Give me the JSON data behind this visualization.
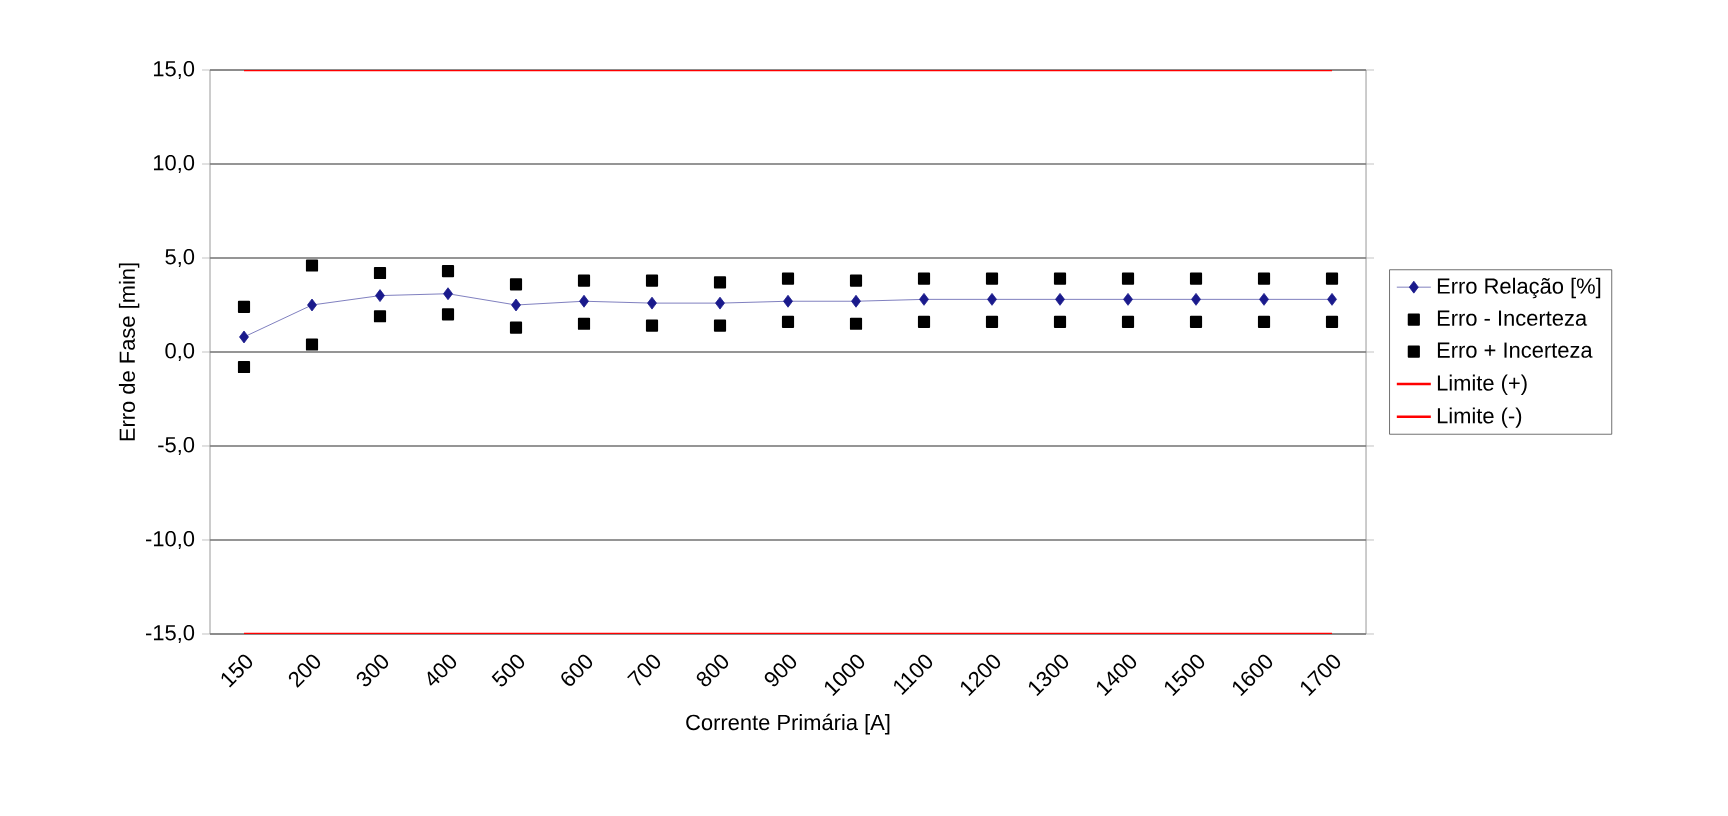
{
  "chart_data": {
    "type": "line",
    "xlabel": "Corrente Primária [A]",
    "ylabel": "Erro de Fase [min]",
    "categories": [
      "150",
      "200",
      "300",
      "400",
      "500",
      "600",
      "700",
      "800",
      "900",
      "1000",
      "1100",
      "1200",
      "1300",
      "1400",
      "1500",
      "1600",
      "1700"
    ],
    "series": [
      {
        "name": "Erro Relação [%]",
        "marker": "diamond",
        "color": "#1a1a8c",
        "values": [
          0.8,
          2.5,
          3.0,
          3.1,
          2.5,
          2.7,
          2.6,
          2.6,
          2.7,
          2.7,
          2.8,
          2.8,
          2.8,
          2.8,
          2.8,
          2.8,
          2.8
        ]
      },
      {
        "name": "Erro - Incerteza",
        "type": "scatter",
        "marker": "square",
        "color": "#000000",
        "values": [
          -0.8,
          0.4,
          1.9,
          2.0,
          1.3,
          1.5,
          1.4,
          1.4,
          1.6,
          1.5,
          1.6,
          1.6,
          1.6,
          1.6,
          1.6,
          1.6,
          1.6
        ]
      },
      {
        "name": "Erro + Incerteza",
        "type": "scatter",
        "marker": "square",
        "color": "#000000",
        "values": [
          2.4,
          4.6,
          4.2,
          4.3,
          3.6,
          3.8,
          3.8,
          3.7,
          3.9,
          3.8,
          3.9,
          3.9,
          3.9,
          3.9,
          3.9,
          3.9,
          3.9
        ]
      },
      {
        "name": "Limite (+)",
        "marker": "none",
        "color": "#ff0000",
        "values": [
          15,
          15,
          15,
          15,
          15,
          15,
          15,
          15,
          15,
          15,
          15,
          15,
          15,
          15,
          15,
          15,
          15
        ]
      },
      {
        "name": "Limite (-)",
        "marker": "none",
        "color": "#ff0000",
        "values": [
          -15,
          -15,
          -15,
          -15,
          -15,
          -15,
          -15,
          -15,
          -15,
          -15,
          -15,
          -15,
          -15,
          -15,
          -15,
          -15,
          -15
        ]
      }
    ],
    "ylim": [
      -15,
      15
    ],
    "yticks": [
      {
        "value": -15,
        "label": "-15,0"
      },
      {
        "value": -10,
        "label": "-10,0"
      },
      {
        "value": -5,
        "label": "-5,0"
      },
      {
        "value": 0,
        "label": "0,0"
      },
      {
        "value": 5,
        "label": "5,0"
      },
      {
        "value": 10,
        "label": "10,0"
      },
      {
        "value": 15,
        "label": "15,0"
      }
    ],
    "grid": "y",
    "legend": "right"
  }
}
